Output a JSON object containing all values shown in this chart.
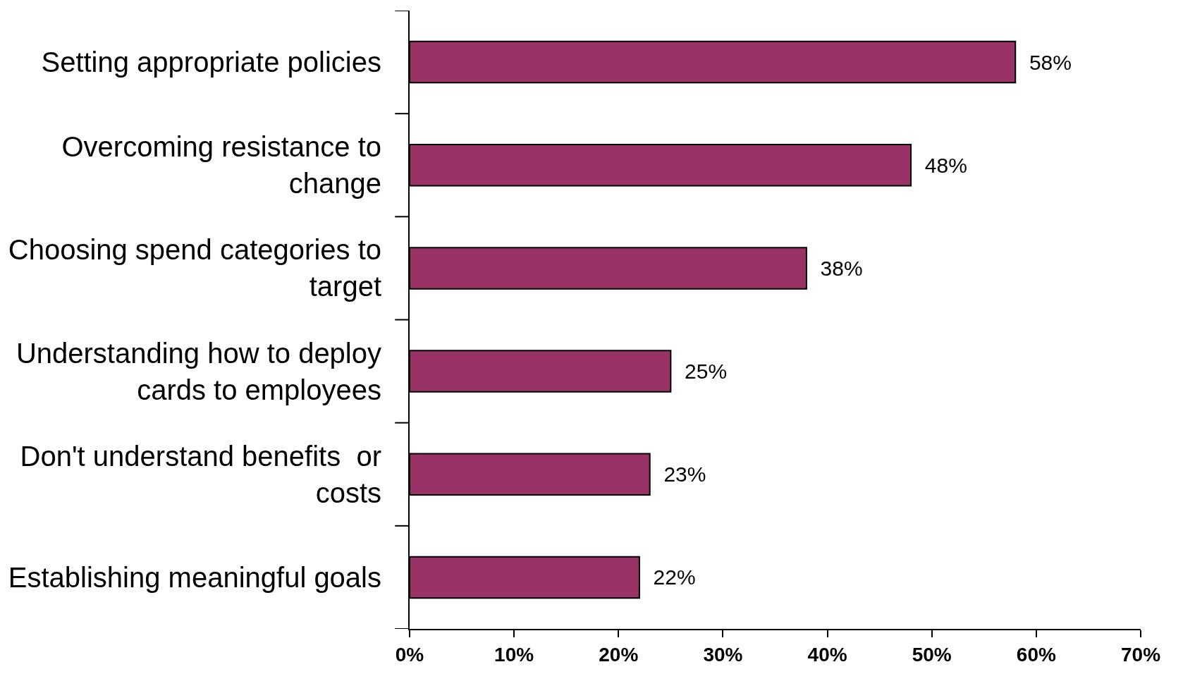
{
  "chart_data": {
    "type": "bar",
    "orientation": "horizontal",
    "categories": [
      "Setting appropriate policies",
      "Overcoming resistance to change",
      "Choosing spend categories to target",
      "Understanding how to deploy cards to employees",
      "Don't understand benefits  or costs",
      "Establishing meaningful goals"
    ],
    "values": [
      58,
      48,
      38,
      25,
      23,
      22
    ],
    "color": "#993366",
    "value_labels": [
      "58%",
      "48%",
      "38%",
      "25%",
      "23%",
      "22%"
    ],
    "xlim": [
      0,
      70
    ],
    "xticks": [
      {
        "value": 0,
        "label": "0%"
      },
      {
        "value": 10,
        "label": "10%"
      },
      {
        "value": 20,
        "label": "20%"
      },
      {
        "value": 30,
        "label": "30%"
      },
      {
        "value": 40,
        "label": "40%"
      },
      {
        "value": 50,
        "label": "50%"
      },
      {
        "value": 60,
        "label": "60%"
      },
      {
        "value": 70,
        "label": "70%"
      }
    ]
  }
}
